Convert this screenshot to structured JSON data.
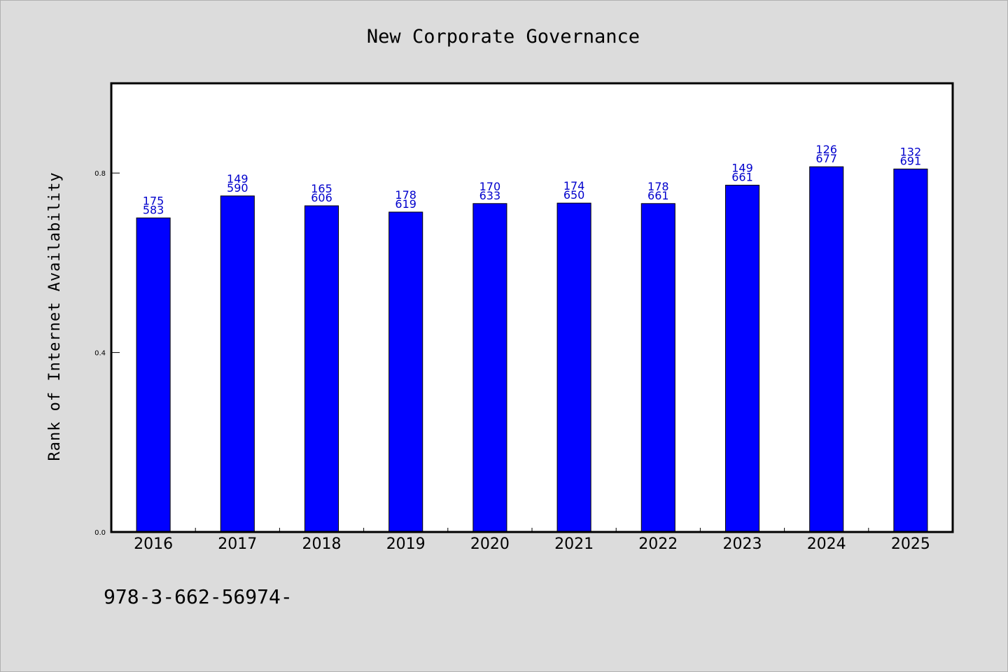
{
  "chart_data": {
    "type": "bar",
    "title": "New Corporate Governance",
    "xlabel": "",
    "ylabel": "Rank of Internet Availability",
    "categories": [
      "2016",
      "2017",
      "2018",
      "2019",
      "2020",
      "2021",
      "2022",
      "2023",
      "2024",
      "2025"
    ],
    "values": [
      0.7,
      0.749,
      0.727,
      0.713,
      0.732,
      0.733,
      0.732,
      0.773,
      0.814,
      0.809
    ],
    "data_labels_top": [
      "175",
      "149",
      "165",
      "178",
      "170",
      "174",
      "178",
      "149",
      "126",
      "132"
    ],
    "data_labels_bottom": [
      "583",
      "590",
      "606",
      "619",
      "633",
      "650",
      "661",
      "661",
      "677",
      "691"
    ],
    "yticks": [
      "0.0",
      "0.4",
      "0.8"
    ],
    "ytick_values": [
      0.0,
      0.4,
      0.8
    ],
    "ylim": [
      0,
      1.0
    ],
    "bar_color": "#0000ff",
    "label_color": "#0000cc",
    "grid": false,
    "legend": "none"
  },
  "footer": {
    "text": "978-3-662-56974-"
  }
}
